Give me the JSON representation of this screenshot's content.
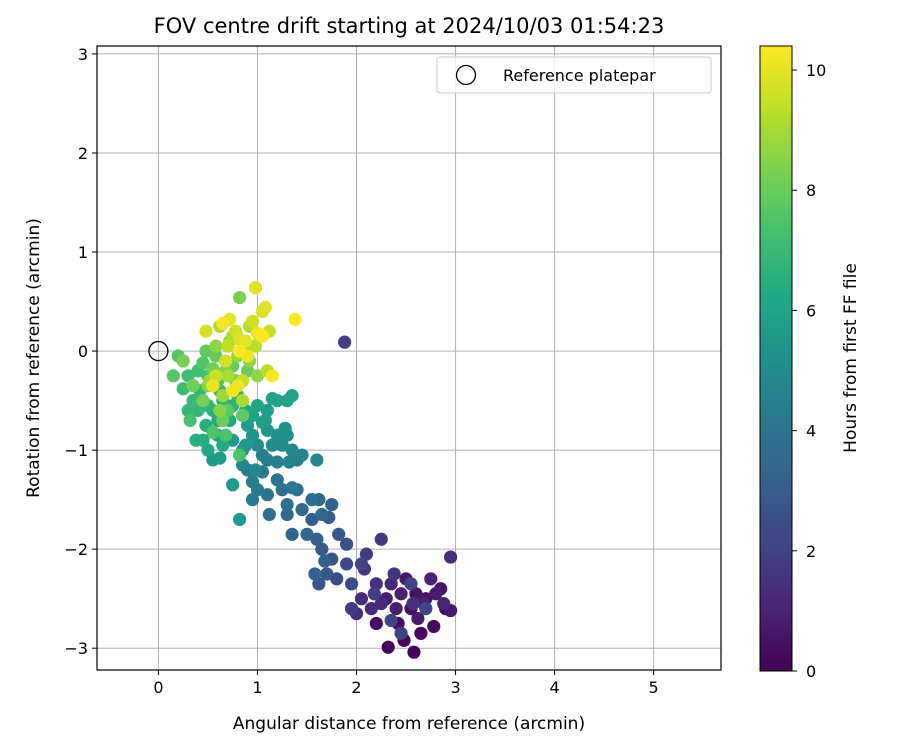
{
  "chart_data": {
    "type": "scatter",
    "title": "FOV centre drift starting at 2024/10/03 01:54:23",
    "xlabel": "Angular distance from reference (arcmin)",
    "ylabel": "Rotation from reference (arcmin)",
    "xlim": [
      -0.62,
      5.68
    ],
    "ylim": [
      -3.22,
      3.08
    ],
    "xticks": [
      0,
      1,
      2,
      3,
      4,
      5
    ],
    "yticks": [
      -3,
      -2,
      -1,
      0,
      1,
      2,
      3
    ],
    "grid": true,
    "legend": {
      "placement": "top-right",
      "entries": [
        "Reference platepar"
      ]
    },
    "reference_point": {
      "x": 0,
      "y": 0,
      "label": "Reference platepar"
    },
    "colorbar": {
      "label": "Hours from first FF file",
      "range": [
        0,
        10.4
      ],
      "ticks": [
        0,
        2,
        4,
        6,
        8,
        10
      ],
      "colormap": "viridis"
    },
    "series": [
      {
        "columns": [
          "x",
          "y",
          "hours"
        ],
        "points": [
          [
            2.58,
            -3.04,
            0.05
          ],
          [
            2.32,
            -2.99,
            0.1
          ],
          [
            2.48,
            -2.92,
            0.15
          ],
          [
            2.65,
            -2.85,
            0.2
          ],
          [
            2.9,
            -2.6,
            0.25
          ],
          [
            2.78,
            -2.78,
            0.3
          ],
          [
            2.42,
            -2.75,
            0.35
          ],
          [
            2.2,
            -2.75,
            0.4
          ],
          [
            2.55,
            -2.6,
            0.45
          ],
          [
            2.7,
            -2.5,
            0.5
          ],
          [
            2.6,
            -2.45,
            0.55
          ],
          [
            2.85,
            -2.4,
            0.6
          ],
          [
            2.5,
            -2.3,
            0.65
          ],
          [
            2.95,
            -2.62,
            0.7
          ],
          [
            2.8,
            -2.45,
            0.75
          ],
          [
            2.62,
            -2.7,
            0.8
          ],
          [
            2.4,
            -2.6,
            0.85
          ],
          [
            2.3,
            -2.5,
            0.9
          ],
          [
            2.45,
            -2.45,
            0.95
          ],
          [
            2.68,
            -2.55,
            1.0
          ],
          [
            2.75,
            -2.3,
            1.05
          ],
          [
            2.88,
            -2.55,
            1.1
          ],
          [
            2.35,
            -2.35,
            1.15
          ],
          [
            2.25,
            -2.55,
            1.2
          ],
          [
            2.15,
            -2.6,
            1.25
          ],
          [
            2.05,
            -2.5,
            1.3
          ],
          [
            2.0,
            -2.65,
            1.35
          ],
          [
            2.95,
            -2.08,
            1.4
          ],
          [
            2.2,
            -2.35,
            1.45
          ],
          [
            2.57,
            -2.55,
            1.5
          ],
          [
            2.38,
            -2.25,
            1.55
          ],
          [
            2.08,
            -2.2,
            1.6
          ],
          [
            2.25,
            -1.9,
            1.7
          ],
          [
            2.1,
            -2.05,
            1.75
          ],
          [
            1.95,
            -2.6,
            1.8
          ],
          [
            2.18,
            -2.45,
            1.85
          ],
          [
            1.88,
            0.09,
            1.9
          ],
          [
            2.45,
            -2.85,
            1.95
          ],
          [
            2.35,
            -2.72,
            2.0
          ],
          [
            2.55,
            -2.35,
            2.05
          ],
          [
            2.7,
            -2.6,
            2.1
          ],
          [
            2.05,
            -2.15,
            2.15
          ],
          [
            1.9,
            -2.15,
            2.25
          ],
          [
            1.95,
            -2.35,
            2.3
          ],
          [
            1.8,
            -2.3,
            2.4
          ],
          [
            1.9,
            -1.95,
            2.5
          ],
          [
            1.75,
            -2.1,
            2.6
          ],
          [
            1.62,
            -2.35,
            2.7
          ],
          [
            1.7,
            -2.25,
            2.75
          ],
          [
            1.82,
            -1.85,
            2.8
          ],
          [
            1.65,
            -2.0,
            2.9
          ],
          [
            1.55,
            -1.7,
            3.0
          ],
          [
            1.72,
            -1.68,
            3.05
          ],
          [
            1.6,
            -1.9,
            3.1
          ],
          [
            1.68,
            -2.12,
            3.15
          ],
          [
            1.58,
            -2.25,
            3.2
          ],
          [
            1.75,
            -1.55,
            3.3
          ],
          [
            1.35,
            -1.85,
            3.35
          ],
          [
            1.5,
            -1.85,
            3.4
          ],
          [
            1.62,
            -1.5,
            3.45
          ],
          [
            1.45,
            -1.6,
            3.5
          ],
          [
            1.65,
            -1.65,
            3.55
          ],
          [
            1.3,
            -1.65,
            3.6
          ],
          [
            1.55,
            -1.5,
            3.7
          ],
          [
            1.4,
            -1.4,
            3.75
          ],
          [
            1.12,
            -1.65,
            3.8
          ],
          [
            1.3,
            -1.55,
            3.85
          ],
          [
            1.25,
            -1.4,
            3.9
          ],
          [
            1.1,
            -1.45,
            4.0
          ],
          [
            1.2,
            -1.3,
            4.05
          ],
          [
            1.35,
            -1.38,
            4.1
          ],
          [
            1.0,
            -1.4,
            4.15
          ],
          [
            0.95,
            -1.5,
            4.2
          ],
          [
            1.05,
            -1.22,
            4.25
          ],
          [
            0.9,
            -1.2,
            4.3
          ],
          [
            0.95,
            -1.32,
            4.35
          ],
          [
            1.1,
            -1.1,
            4.4
          ],
          [
            1.05,
            -1.05,
            4.45
          ],
          [
            1.2,
            -1.12,
            4.5
          ],
          [
            1.4,
            -1.1,
            4.55
          ],
          [
            1.32,
            -1.12,
            4.6
          ],
          [
            1.45,
            -1.05,
            4.65
          ],
          [
            1.6,
            -1.1,
            4.7
          ],
          [
            1.35,
            -1.0,
            4.8
          ],
          [
            0.85,
            -1.15,
            4.85
          ],
          [
            0.98,
            -1.2,
            4.9
          ],
          [
            1.25,
            -0.95,
            4.95
          ],
          [
            1.15,
            -0.95,
            5.0
          ],
          [
            1.0,
            -0.95,
            5.05
          ],
          [
            0.85,
            -1.0,
            5.1
          ],
          [
            1.28,
            -0.78,
            5.15
          ],
          [
            1.3,
            -0.85,
            5.2
          ],
          [
            1.2,
            -0.85,
            5.25
          ],
          [
            1.1,
            -0.8,
            5.3
          ],
          [
            0.95,
            -0.85,
            5.35
          ],
          [
            0.88,
            -0.95,
            5.45
          ],
          [
            0.75,
            -0.9,
            5.5
          ],
          [
            0.55,
            -1.1,
            5.55
          ],
          [
            0.62,
            -1.08,
            5.6
          ],
          [
            0.75,
            -1.35,
            5.6
          ],
          [
            0.82,
            -1.7,
            5.65
          ],
          [
            1.05,
            -0.72,
            5.7
          ],
          [
            0.9,
            -0.75,
            5.75
          ],
          [
            1.1,
            -0.6,
            5.8
          ],
          [
            1.08,
            -0.7,
            5.85
          ],
          [
            0.95,
            -0.65,
            5.9
          ],
          [
            1.2,
            -0.5,
            5.95
          ],
          [
            1.35,
            -0.45,
            6.0
          ],
          [
            1.15,
            -0.48,
            6.0
          ],
          [
            1.3,
            -0.5,
            6.05
          ],
          [
            1.0,
            -0.55,
            6.1
          ],
          [
            0.6,
            -0.85,
            6.1
          ],
          [
            0.5,
            -1.0,
            6.15
          ],
          [
            0.88,
            -0.6,
            6.2
          ],
          [
            0.72,
            -0.7,
            6.25
          ],
          [
            0.65,
            -0.95,
            6.3
          ],
          [
            0.45,
            -0.9,
            6.35
          ],
          [
            0.6,
            -0.7,
            6.4
          ],
          [
            0.48,
            -0.75,
            6.45
          ],
          [
            0.38,
            -0.9,
            6.5
          ],
          [
            0.55,
            -0.6,
            6.55
          ],
          [
            0.75,
            -0.55,
            6.6
          ],
          [
            0.8,
            -0.45,
            6.65
          ],
          [
            0.65,
            -0.5,
            6.7
          ],
          [
            0.5,
            -0.55,
            6.8
          ],
          [
            0.4,
            -0.6,
            6.85
          ],
          [
            0.3,
            -0.6,
            6.9
          ],
          [
            0.42,
            -0.4,
            6.95
          ],
          [
            0.35,
            -0.5,
            7.0
          ],
          [
            0.62,
            -0.4,
            7.05
          ],
          [
            0.25,
            -0.38,
            7.1
          ],
          [
            0.3,
            -0.25,
            7.15
          ],
          [
            0.4,
            -0.2,
            7.2
          ],
          [
            0.5,
            -0.25,
            7.3
          ],
          [
            0.32,
            -0.7,
            7.35
          ],
          [
            0.82,
            -1.05,
            7.4
          ],
          [
            0.68,
            -0.85,
            7.45
          ],
          [
            0.55,
            -0.82,
            7.5
          ],
          [
            0.45,
            -0.12,
            7.55
          ],
          [
            0.6,
            -0.3,
            7.6
          ],
          [
            0.2,
            -0.05,
            7.65
          ],
          [
            0.15,
            -0.25,
            7.7
          ],
          [
            0.7,
            -0.6,
            7.75
          ],
          [
            0.85,
            -0.65,
            7.8
          ],
          [
            0.48,
            0.0,
            7.85
          ],
          [
            0.58,
            -0.05,
            7.9
          ],
          [
            0.75,
            -0.15,
            7.95
          ],
          [
            0.9,
            -0.2,
            8.0
          ],
          [
            0.65,
            -0.7,
            8.05
          ],
          [
            0.55,
            -0.18,
            8.1
          ],
          [
            0.35,
            -0.35,
            8.15
          ],
          [
            0.45,
            -0.5,
            8.2
          ],
          [
            0.25,
            -0.1,
            8.25
          ],
          [
            0.82,
            0.54,
            8.3
          ],
          [
            0.68,
            -0.2,
            8.35
          ],
          [
            0.78,
            -0.3,
            8.4
          ],
          [
            0.5,
            -0.35,
            8.45
          ],
          [
            0.62,
            -0.6,
            8.5
          ],
          [
            0.58,
            0.05,
            8.55
          ],
          [
            0.92,
            -0.1,
            8.6
          ],
          [
            1.0,
            -0.25,
            8.65
          ],
          [
            0.8,
            -0.05,
            8.7
          ],
          [
            0.72,
            0.1,
            8.75
          ],
          [
            0.88,
            0.05,
            8.8
          ],
          [
            0.65,
            -0.45,
            8.85
          ],
          [
            0.52,
            -0.3,
            8.9
          ],
          [
            0.7,
            -0.25,
            9.0
          ],
          [
            0.85,
            -0.5,
            9.05
          ],
          [
            0.75,
            0.15,
            9.1
          ],
          [
            0.62,
            0.25,
            9.15
          ],
          [
            0.92,
            0.25,
            9.2
          ],
          [
            0.98,
            0.05,
            9.25
          ],
          [
            1.1,
            -0.2,
            9.3
          ],
          [
            1.02,
            0.15,
            9.35
          ],
          [
            0.7,
            0.05,
            9.4
          ],
          [
            0.85,
            -0.3,
            9.45
          ],
          [
            0.58,
            -0.25,
            9.5
          ],
          [
            1.12,
            0.2,
            9.55
          ],
          [
            0.95,
            0.3,
            9.6
          ],
          [
            0.78,
            0.2,
            9.65
          ],
          [
            0.68,
            -0.1,
            9.7
          ],
          [
            0.48,
            0.2,
            9.75
          ],
          [
            0.82,
            0.12,
            9.8
          ],
          [
            1.05,
            0.4,
            9.85
          ],
          [
            0.98,
            0.64,
            9.9
          ],
          [
            1.08,
            0.44,
            9.95
          ],
          [
            0.88,
            0.1,
            10.0
          ],
          [
            0.72,
            0.32,
            10.05
          ],
          [
            0.8,
            -0.35,
            10.1
          ],
          [
            0.55,
            -0.35,
            10.1
          ],
          [
            0.75,
            -0.4,
            10.15
          ],
          [
            0.9,
            -0.05,
            10.2
          ],
          [
            1.0,
            0.18,
            10.25
          ],
          [
            1.15,
            -0.25,
            10.3
          ],
          [
            0.65,
            0.28,
            10.3
          ],
          [
            1.38,
            0.32,
            10.35
          ],
          [
            1.05,
            0.15,
            10.35
          ],
          [
            0.82,
            0.0,
            10.4
          ]
        ]
      }
    ]
  }
}
